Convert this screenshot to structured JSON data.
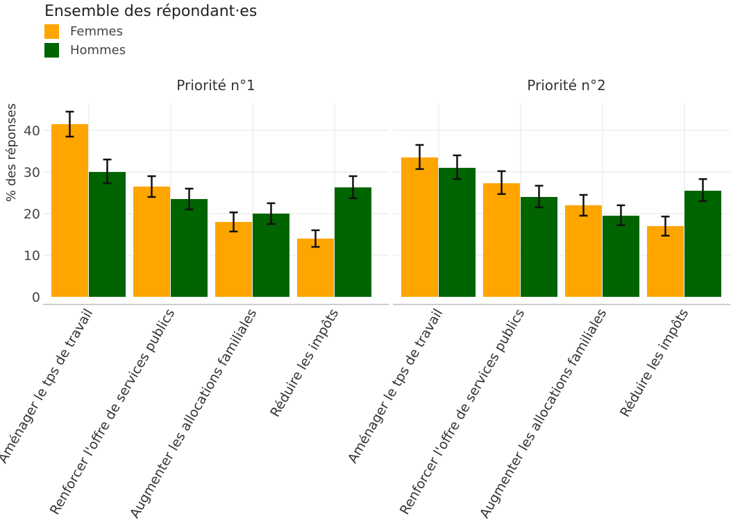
{
  "legend": {
    "title": "Ensemble des répondant·es",
    "items": [
      {
        "label": "Femmes",
        "color": "#FFA500"
      },
      {
        "label": "Hommes",
        "color": "#006400"
      }
    ]
  },
  "chart_data": {
    "type": "bar",
    "ylabel": "% des réponses",
    "ylim": [
      0,
      47
    ],
    "yticks": [
      0,
      10,
      20,
      30,
      40
    ],
    "grid": true,
    "legend_position": "top-left",
    "categories": [
      "Aménager le tps de travail",
      "Renforcer l'offre de services publics",
      "Augmenter les allocations familiales",
      "Réduire les impôts"
    ],
    "panels": [
      {
        "title": "Priorité n°1",
        "series": [
          {
            "name": "Femmes",
            "values": [
              41.5,
              26.5,
              18,
              14
            ],
            "error_low": [
              38.5,
              24,
              15.7,
              12
            ],
            "error_high": [
              44.5,
              29,
              20.3,
              16
            ]
          },
          {
            "name": "Hommes",
            "values": [
              30,
              23.5,
              20,
              26.3
            ],
            "error_low": [
              27.3,
              21,
              17.5,
              23.7
            ],
            "error_high": [
              33,
              26,
              22.5,
              29
            ]
          }
        ]
      },
      {
        "title": "Priorité n°2",
        "series": [
          {
            "name": "Femmes",
            "values": [
              33.5,
              27.3,
              22,
              17
            ],
            "error_low": [
              30.7,
              24.7,
              19.5,
              14.7
            ],
            "error_high": [
              36.5,
              30.2,
              24.5,
              19.3
            ]
          },
          {
            "name": "Hommes",
            "values": [
              31,
              24,
              19.5,
              25.5
            ],
            "error_low": [
              28.3,
              21.5,
              17.2,
              23
            ],
            "error_high": [
              34,
              26.7,
              22,
              28.3
            ]
          }
        ]
      }
    ]
  }
}
